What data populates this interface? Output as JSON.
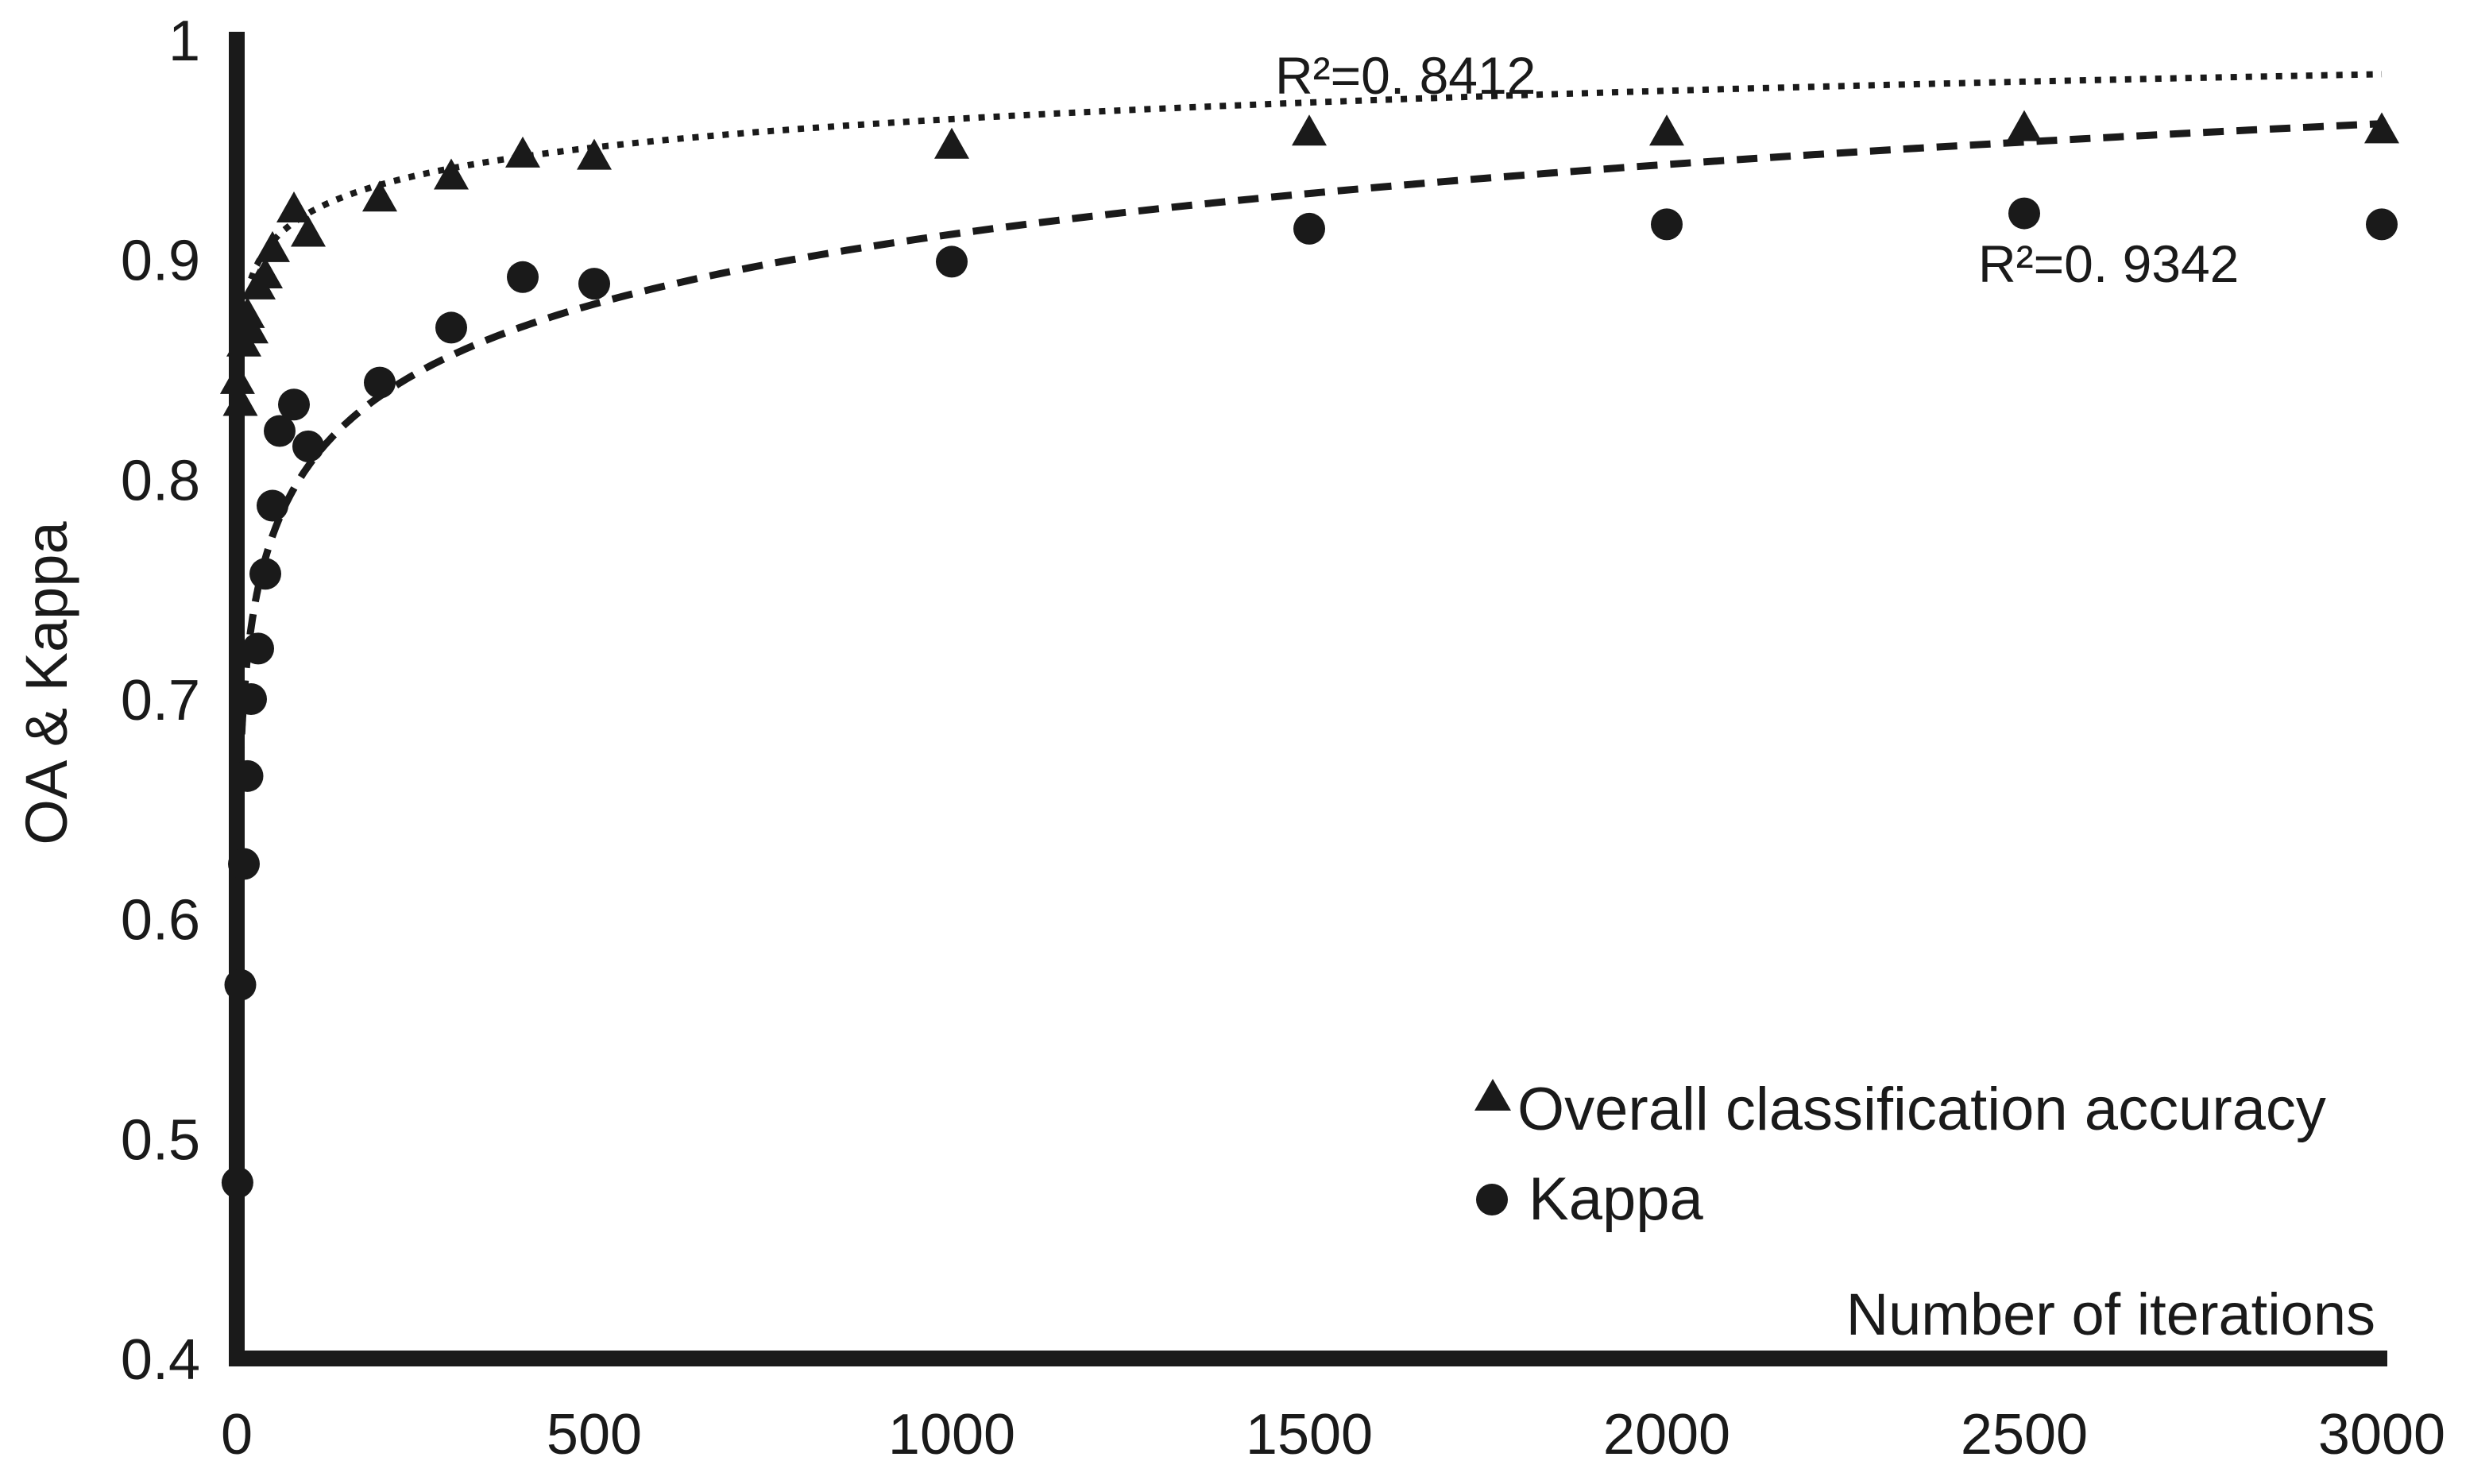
{
  "chart_data": {
    "type": "scatter",
    "title": "",
    "xlabel": "Number of iterations",
    "ylabel": "OA & Kappa",
    "xlim": [
      0,
      3000
    ],
    "ylim": [
      0.4,
      1.0
    ],
    "x_ticks": [
      "0",
      "500",
      "1000",
      "1500",
      "2000",
      "2500",
      "3000"
    ],
    "y_ticks": [
      "0.4",
      "0.5",
      "0.6",
      "0.7",
      "0.8",
      "0.9",
      "1"
    ],
    "grid": false,
    "legend_position": "bottom-right",
    "series": [
      {
        "name": "Overall classification accuracy",
        "marker": "triangle",
        "color": "#1a1a1a",
        "trendline": "dotted",
        "r2": "R²=0. 8412",
        "points": [
          {
            "x": 1,
            "y": 0.845
          },
          {
            "x": 5,
            "y": 0.835
          },
          {
            "x": 10,
            "y": 0.862
          },
          {
            "x": 15,
            "y": 0.875
          },
          {
            "x": 20,
            "y": 0.868
          },
          {
            "x": 30,
            "y": 0.888
          },
          {
            "x": 40,
            "y": 0.893
          },
          {
            "x": 50,
            "y": 0.905
          },
          {
            "x": 80,
            "y": 0.923
          },
          {
            "x": 100,
            "y": 0.912
          },
          {
            "x": 200,
            "y": 0.928
          },
          {
            "x": 300,
            "y": 0.938
          },
          {
            "x": 400,
            "y": 0.948
          },
          {
            "x": 500,
            "y": 0.947
          },
          {
            "x": 1000,
            "y": 0.952
          },
          {
            "x": 1500,
            "y": 0.958
          },
          {
            "x": 2000,
            "y": 0.958
          },
          {
            "x": 2500,
            "y": 0.96
          },
          {
            "x": 3000,
            "y": 0.959
          }
        ]
      },
      {
        "name": "Kappa",
        "marker": "circle",
        "color": "#1a1a1a",
        "trendline": "dashed",
        "r2": "R²=0. 9342",
        "points": [
          {
            "x": 1,
            "y": 0.48
          },
          {
            "x": 5,
            "y": 0.57
          },
          {
            "x": 10,
            "y": 0.625
          },
          {
            "x": 15,
            "y": 0.665
          },
          {
            "x": 20,
            "y": 0.7
          },
          {
            "x": 30,
            "y": 0.723
          },
          {
            "x": 40,
            "y": 0.757
          },
          {
            "x": 50,
            "y": 0.788
          },
          {
            "x": 60,
            "y": 0.822
          },
          {
            "x": 80,
            "y": 0.834
          },
          {
            "x": 100,
            "y": 0.815
          },
          {
            "x": 200,
            "y": 0.844
          },
          {
            "x": 300,
            "y": 0.869
          },
          {
            "x": 400,
            "y": 0.892
          },
          {
            "x": 500,
            "y": 0.889
          },
          {
            "x": 1000,
            "y": 0.899
          },
          {
            "x": 1500,
            "y": 0.914
          },
          {
            "x": 2000,
            "y": 0.916
          },
          {
            "x": 2500,
            "y": 0.921
          },
          {
            "x": 3000,
            "y": 0.916
          }
        ]
      }
    ],
    "trendlines": [
      {
        "series": "Overall classification accuracy",
        "style": "dotted",
        "a": 0.8354,
        "b": 0.0186,
        "x_range": [
          20,
          3000
        ]
      },
      {
        "series": "Kappa",
        "style": "dashed",
        "a": 0.5951,
        "b": 0.0458,
        "x_range": [
          5,
          3000
        ]
      }
    ]
  }
}
